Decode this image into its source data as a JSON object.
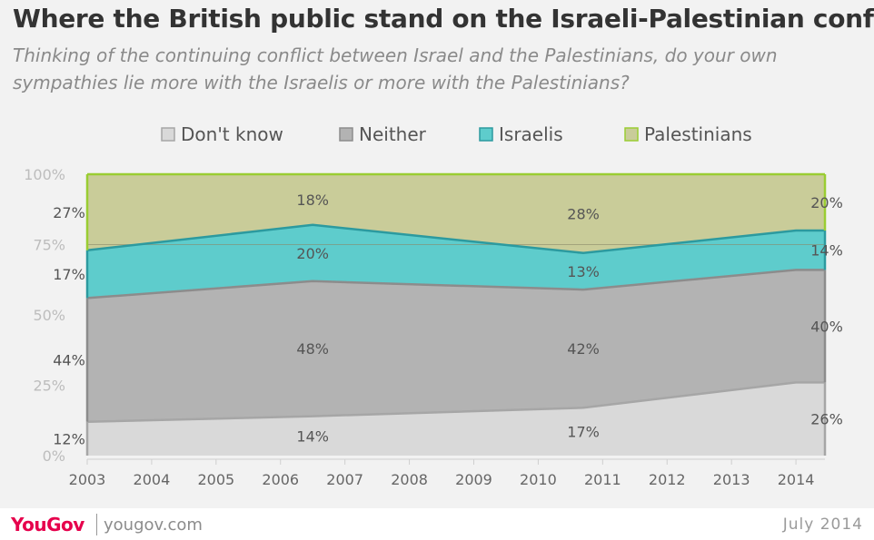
{
  "header": {
    "title": "Where the British public stand on the Israeli-Palestinian conflict",
    "subtitle": "Thinking of the continuing conflict between Israel and the Palestinians, do your own sympathies lie more with the Israelis or more with the Palestinians?"
  },
  "footer": {
    "logo": "YouGov",
    "url": "yougov.com",
    "date": "July  2014"
  },
  "chart_data": {
    "type": "area",
    "stacked": true,
    "x": [
      2003,
      2006.5,
      2010.7,
      2014
    ],
    "x_ticks": [
      "2003",
      "2004",
      "2005",
      "2006",
      "2007",
      "2008",
      "2009",
      "2010",
      "2011",
      "2012",
      "2013",
      "2014"
    ],
    "y_ticks": [
      "0%",
      "25%",
      "50%",
      "75%",
      "100%"
    ],
    "ylim": [
      0,
      100
    ],
    "legend_position": "top",
    "series": [
      {
        "name": "Don't know",
        "color": "#d9d9d9",
        "line": "#a6a6a6",
        "values": [
          12,
          14,
          17,
          26
        ],
        "labels": [
          "12%",
          "14%",
          "17%",
          "26%"
        ]
      },
      {
        "name": "Neither",
        "color": "#b3b3b3",
        "line": "#8c8c8c",
        "values": [
          44,
          48,
          42,
          40
        ],
        "labels": [
          "44%",
          "48%",
          "42%",
          "40%"
        ]
      },
      {
        "name": "Israelis",
        "color": "#5ecccc",
        "line": "#2c9a9f",
        "values": [
          17,
          20,
          13,
          14
        ],
        "labels": [
          "17%",
          "20%",
          "13%",
          "14%"
        ]
      },
      {
        "name": "Palestinians",
        "color": "#c9cc99",
        "line": "#9acd32",
        "values": [
          27,
          18,
          28,
          20
        ],
        "labels": [
          "27%",
          "18%",
          "28%",
          "20%"
        ]
      }
    ]
  }
}
